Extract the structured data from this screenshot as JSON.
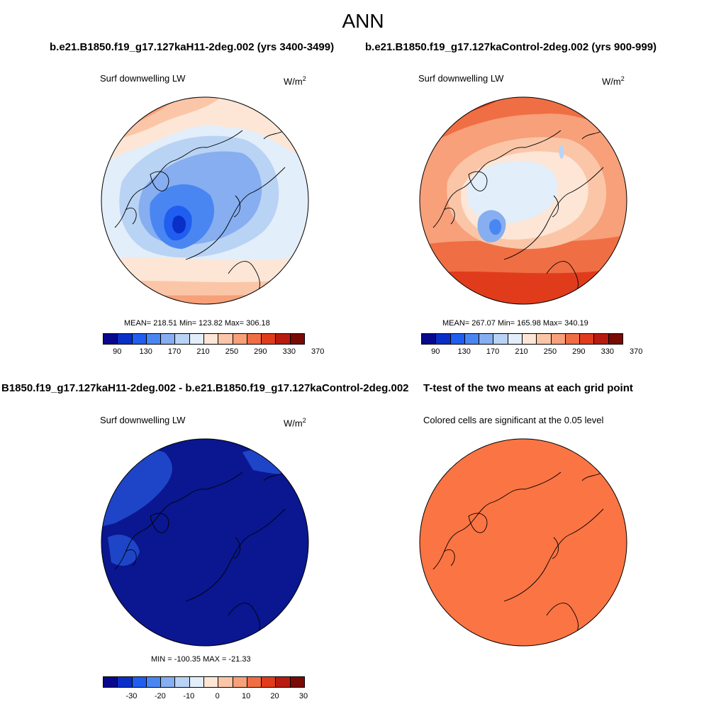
{
  "title": "ANN",
  "panels": [
    {
      "heading": "b.e21.B1850.f19_g17.127kaH11-2deg.002 (yrs 3400-3499)",
      "variable": "Surf downwelling LW",
      "units_base": "W/m",
      "units_exp": "2",
      "stats": "MEAN= 218.51  Min= 123.82  Max= 306.18",
      "colorbar_labels": [
        "90",
        "130",
        "170",
        "210",
        "250",
        "290",
        "330",
        "370"
      ]
    },
    {
      "heading": "b.e21.B1850.f19_g17.127kaControl-2deg.002 (yrs 900-999)",
      "variable": "Surf downwelling LW",
      "units_base": "W/m",
      "units_exp": "2",
      "stats": "MEAN= 267.07  Min= 165.98  Max= 340.19",
      "colorbar_labels": [
        "90",
        "130",
        "170",
        "210",
        "250",
        "290",
        "330",
        "370"
      ]
    },
    {
      "heading": "B1850.f19_g17.127kaH11-2deg.002 - b.e21.B1850.f19_g17.127kaControl-2deg.002",
      "variable": "Surf downwelling LW",
      "units_base": "W/m",
      "units_exp": "2",
      "stats": "MIN = -100.35 MAX = -21.33",
      "colorbar_labels": [
        "-30",
        "-20",
        "-10",
        "0",
        "10",
        "20",
        "30"
      ]
    },
    {
      "heading": "T-test of the two means at each grid point",
      "variable": "Colored cells are significant at the 0.05 level"
    }
  ],
  "palette": [
    "#08088c",
    "#0a2fc8",
    "#1f5ef0",
    "#4a86f2",
    "#86aef0",
    "#b9d3f4",
    "#e2eefa",
    "#fde6d6",
    "#fbc6a8",
    "#f7a07a",
    "#f06e44",
    "#e03c1c",
    "#b81c10",
    "#7a0a04"
  ],
  "colors": {
    "significance_fill": "#fb7443",
    "difference_fill": "#0a1790",
    "difference_secondary": "#1e45c8"
  }
}
